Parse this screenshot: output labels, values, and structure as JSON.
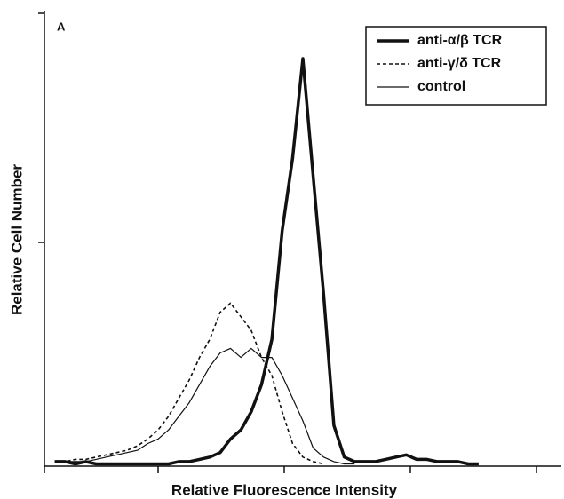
{
  "chart_data": {
    "type": "line",
    "title": "A",
    "x_label": "Relative Fluorescence Intensity",
    "y_label": "Relative Cell Number",
    "xlim": [
      0,
      100
    ],
    "ylim": [
      0,
      100
    ],
    "legend": "upper right",
    "x": [
      2,
      4,
      6,
      8,
      10,
      12,
      14,
      16,
      18,
      20,
      22,
      24,
      26,
      28,
      30,
      32,
      34,
      36,
      38,
      40,
      42,
      44,
      46,
      48,
      50,
      52,
      54,
      56,
      58,
      60,
      62,
      64,
      66,
      68,
      70,
      72,
      74,
      76,
      78,
      80,
      82,
      84
    ],
    "series": [
      {
        "name": "anti-α/β TCR",
        "color": "#111111",
        "width": 3.5,
        "dash": "none",
        "values": [
          1,
          1,
          0.5,
          1,
          0.5,
          0.5,
          0.5,
          0.5,
          0.5,
          0.5,
          0.5,
          0.5,
          1,
          1,
          1.5,
          2,
          3,
          6,
          8,
          12,
          18,
          28,
          52,
          68,
          90,
          64,
          38,
          9,
          2,
          1,
          1,
          1,
          1.5,
          2,
          2.5,
          1.5,
          1.5,
          1,
          1,
          1,
          0.5,
          0.5
        ]
      },
      {
        "name": "anti-γ/δ TCR",
        "color": "#111111",
        "width": 1.6,
        "dash": "4 3",
        "values": [
          1,
          1,
          1.5,
          1.5,
          2,
          2.5,
          3,
          3.5,
          4.5,
          6,
          8,
          11,
          15,
          19,
          24,
          28,
          34,
          36,
          33,
          30,
          24,
          20,
          12,
          5,
          2,
          1,
          0.5,
          null,
          null,
          null,
          null,
          null,
          null,
          null,
          null,
          null,
          null,
          null,
          null,
          null,
          null,
          null
        ]
      },
      {
        "name": "control",
        "color": "#111111",
        "width": 1.2,
        "dash": "none",
        "values": [
          1,
          1,
          1,
          1,
          1.5,
          2,
          2.5,
          3,
          3.5,
          5,
          6,
          8,
          11,
          14,
          18,
          22,
          25,
          26,
          24,
          26,
          24,
          24,
          20,
          15,
          10,
          4,
          2,
          1,
          0.5,
          0.5,
          null,
          null,
          null,
          null,
          null,
          null,
          null,
          null,
          null,
          null,
          null,
          null
        ]
      }
    ]
  }
}
